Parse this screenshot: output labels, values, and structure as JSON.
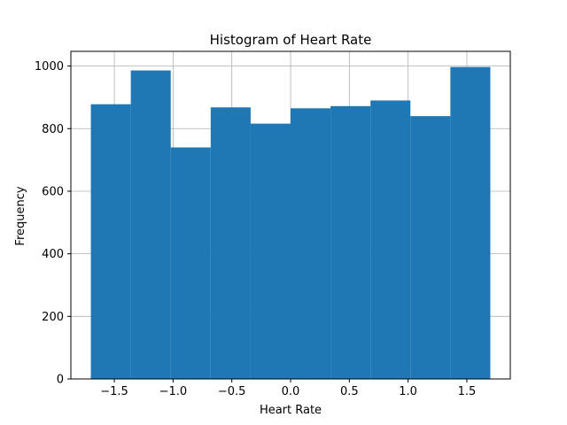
{
  "chart_data": {
    "type": "bar",
    "title": "Histogram of Heart Rate",
    "xlabel": "Heart Rate",
    "ylabel": "Frequency",
    "bin_edges": [
      -1.7,
      -1.36,
      -1.02,
      -0.68,
      -0.34,
      0.0,
      0.34,
      0.68,
      1.02,
      1.36,
      1.7
    ],
    "values": [
      878,
      986,
      740,
      868,
      816,
      865,
      872,
      890,
      840,
      997
    ],
    "xlim": [
      -1.87,
      1.87
    ],
    "ylim": [
      0,
      1047
    ],
    "xticks": [
      -1.5,
      -1.0,
      -0.5,
      0.0,
      0.5,
      1.0,
      1.5
    ],
    "xtick_labels": [
      "−1.5",
      "−1.0",
      "−0.5",
      "0.0",
      "0.5",
      "1.0",
      "1.5"
    ],
    "yticks": [
      0,
      200,
      400,
      600,
      800,
      1000
    ],
    "ytick_labels": [
      "0",
      "200",
      "400",
      "600",
      "800",
      "1000"
    ],
    "grid": true,
    "bar_color": "#1f77b4",
    "grid_color": "#b0b0b0"
  }
}
